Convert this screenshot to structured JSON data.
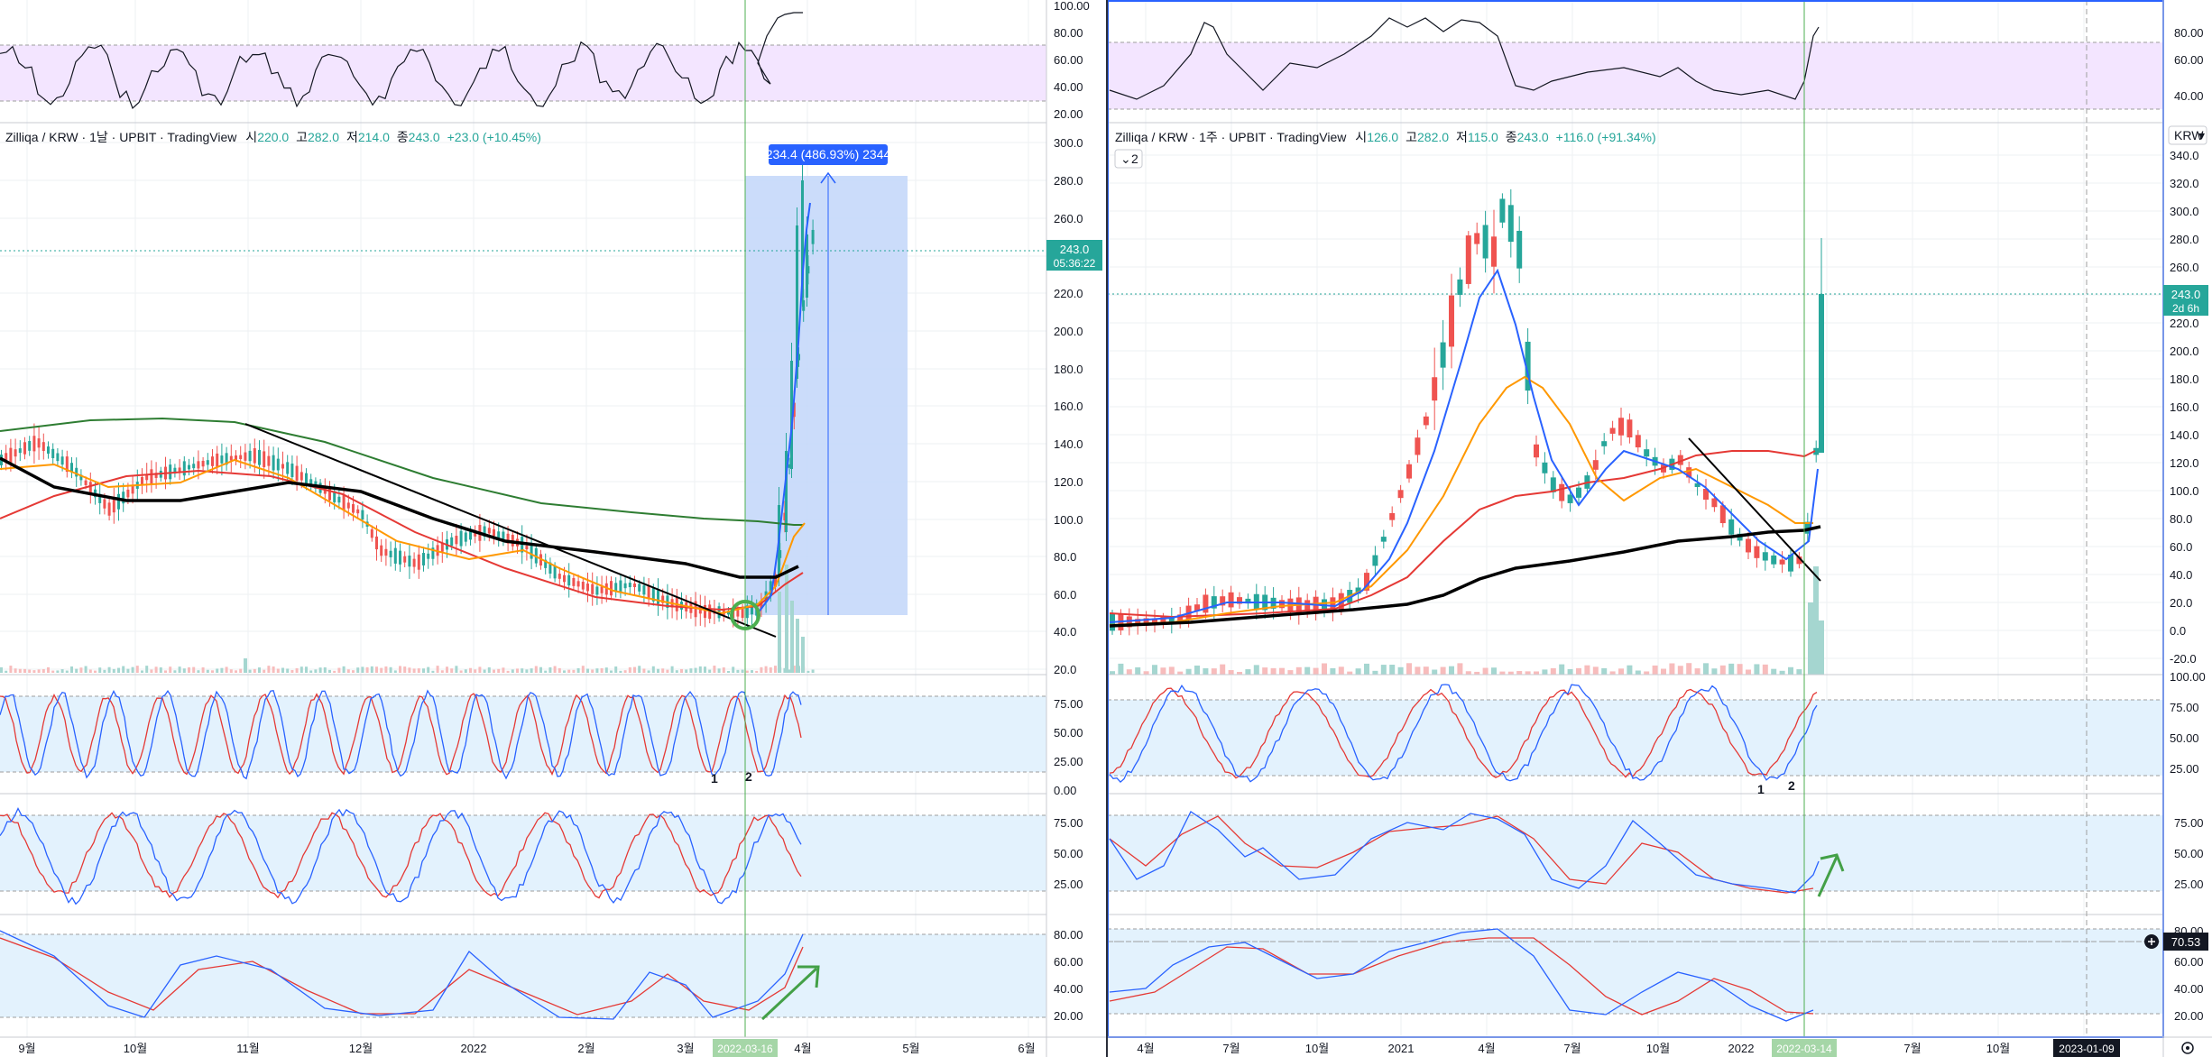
{
  "colors": {
    "up": "#26a69a",
    "down": "#ef5350",
    "ma_blue": "#2962ff",
    "ma_orange": "#ff9800",
    "ma_red": "#e53935",
    "ma_green": "#2e7d32",
    "ma_black": "#000000",
    "rsi_fill": "#f3e5ff",
    "stoch_fill": "#e3f2fd",
    "range_fill": "#c5d8fa",
    "range_line": "#2962ff",
    "grid": "#eef0f3",
    "vline": "#4caf50",
    "accent": "#2962ff",
    "arrow": "#43a047",
    "circle": "#4caf50"
  },
  "left": {
    "legend": {
      "symbol": "Zilliqa / KRW · 1날 · UPBIT · TradingView",
      "o_label": "시",
      "o": "220.0",
      "h_label": "고",
      "h": "282.0",
      "l_label": "저",
      "l": "214.0",
      "c_label": "종",
      "c": "243.0",
      "chg": "+23.0 (+10.45%)"
    },
    "price_axis": [
      "300.0",
      "280.0",
      "260.0",
      "240.0",
      "220.0",
      "200.0",
      "180.0",
      "160.0",
      "140.0",
      "120.0",
      "100.0",
      "80.0",
      "60.0",
      "40.0",
      "20.0"
    ],
    "price_badge": {
      "value": "243.0",
      "timer": "05:36:22"
    },
    "measure_label": "234.4 (486.93%) 2344",
    "rsi_axis": [
      "100.00",
      "80.00",
      "60.00",
      "40.00",
      "20.00"
    ],
    "stoch1_axis": [
      "75.00",
      "50.00",
      "25.00",
      "0.00"
    ],
    "stoch2_axis": [
      "75.00",
      "50.00",
      "25.00"
    ],
    "stoch3_axis": [
      "80.00",
      "60.00",
      "40.00",
      "20.00"
    ],
    "wave_labels": [
      "1",
      "2"
    ],
    "time_axis": [
      "9월",
      "10월",
      "11월",
      "12월",
      "2022",
      "2월",
      "3월",
      "4월",
      "5월",
      "6월"
    ],
    "date_badge": "2022-03-16"
  },
  "right": {
    "legend": {
      "symbol": "Zilliqa / KRW · 1주 · UPBIT · TradingView",
      "o_label": "시",
      "o": "126.0",
      "h_label": "고",
      "h": "282.0",
      "l_label": "저",
      "l": "115.0",
      "c_label": "종",
      "c": "243.0",
      "chg": "+116.0 (+91.34%)"
    },
    "collapse_label": "2",
    "currency": "KRW",
    "price_axis": [
      "340.0",
      "320.0",
      "300.0",
      "280.0",
      "260.0",
      "240.0",
      "220.0",
      "200.0",
      "180.0",
      "160.0",
      "140.0",
      "120.0",
      "100.0",
      "80.0",
      "60.0",
      "40.0",
      "20.0",
      "0.0",
      "-20.0"
    ],
    "price_badge": {
      "value": "243.0",
      "timer": "2d 6h"
    },
    "rsi_axis": [
      "80.00",
      "60.00",
      "40.00"
    ],
    "stoch1_axis": [
      "100.00",
      "75.00",
      "50.00",
      "25.00"
    ],
    "stoch2_axis": [
      "75.00",
      "50.00",
      "25.00"
    ],
    "stoch3_axis": [
      "80.00",
      "60.00",
      "40.00",
      "20.00"
    ],
    "stoch3_badge": "70.53",
    "wave_labels": [
      "1",
      "2"
    ],
    "time_axis": [
      "4월",
      "7월",
      "10월",
      "2021",
      "4월",
      "7월",
      "10월",
      "2022",
      "4월",
      "7월",
      "10월"
    ],
    "date_badge": "2022-03-14",
    "cursor_date": "2023-01-09"
  }
}
